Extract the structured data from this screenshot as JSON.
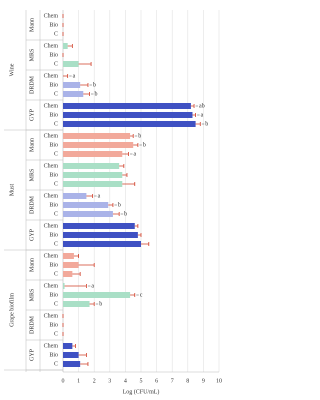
{
  "chart_data": {
    "type": "bar",
    "orientation": "horizontal",
    "xlabel": "Log (CFU/mL)",
    "xlim": [
      0,
      10
    ],
    "xticks": [
      0,
      1,
      2,
      3,
      4,
      5,
      6,
      7,
      8,
      9,
      10
    ],
    "grid": true,
    "error_color": "#d0402a",
    "groups": [
      {
        "name": "Wine",
        "media": [
          {
            "name": "Mann",
            "color": "#f2a99b",
            "categories": [
              "Chem",
              "Bio",
              "C"
            ],
            "values": [
              0,
              0,
              0
            ],
            "errors": [
              0,
              0,
              0
            ],
            "letters": [
              null,
              null,
              null
            ]
          },
          {
            "name": "MRS",
            "color": "#a9dfc6",
            "categories": [
              "Chem",
              "Bio",
              "C"
            ],
            "values": [
              0.3,
              0,
              1.0
            ],
            "errors": [
              0.3,
              0,
              0.8
            ],
            "letters": [
              null,
              null,
              null
            ]
          },
          {
            "name": "DRDM",
            "color": "#aab3e8",
            "categories": [
              "Chem",
              "Bio",
              "C"
            ],
            "values": [
              0,
              1.1,
              1.3
            ],
            "errors": [
              0.3,
              0.5,
              0.4
            ],
            "letters": [
              "a",
              "b",
              "b"
            ]
          },
          {
            "name": "GYP",
            "color": "#3f51c3",
            "categories": [
              "Chem",
              "Bio",
              "C"
            ],
            "values": [
              8.2,
              8.3,
              8.5
            ],
            "errors": [
              0.2,
              0.2,
              0.3
            ],
            "letters": [
              "ab",
              "a",
              "b"
            ]
          }
        ]
      },
      {
        "name": "Must",
        "media": [
          {
            "name": "Mann",
            "color": "#f2a99b",
            "categories": [
              "Chem",
              "Bio",
              "C"
            ],
            "values": [
              4.3,
              4.5,
              3.8
            ],
            "errors": [
              0.2,
              0.3,
              0.4
            ],
            "letters": [
              "b",
              "b",
              "a"
            ]
          },
          {
            "name": "MRS",
            "color": "#a9dfc6",
            "categories": [
              "Chem",
              "Bio",
              "C"
            ],
            "values": [
              3.6,
              3.8,
              3.8
            ],
            "errors": [
              0.3,
              0.3,
              0.8
            ],
            "letters": [
              null,
              null,
              null
            ]
          },
          {
            "name": "DRDM",
            "color": "#aab3e8",
            "categories": [
              "Chem",
              "Bio",
              "C"
            ],
            "values": [
              1.5,
              2.9,
              3.2
            ],
            "errors": [
              0.4,
              0.3,
              0.4
            ],
            "letters": [
              "a",
              "b",
              "b"
            ]
          },
          {
            "name": "GYP",
            "color": "#3f51c3",
            "categories": [
              "Chem",
              "Bio",
              "C"
            ],
            "values": [
              4.6,
              4.8,
              5.0
            ],
            "errors": [
              0.2,
              0.2,
              0.5
            ],
            "letters": [
              null,
              null,
              null
            ]
          }
        ]
      },
      {
        "name": "Grape biofilm",
        "media": [
          {
            "name": "Mann",
            "color": "#f2a99b",
            "categories": [
              "Chem",
              "Bio",
              "C"
            ],
            "values": [
              0.7,
              1.0,
              0.6
            ],
            "errors": [
              0.3,
              1.0,
              0.5
            ],
            "letters": [
              null,
              null,
              null
            ]
          },
          {
            "name": "MRS",
            "color": "#a9dfc6",
            "categories": [
              "Chem",
              "Bio",
              "C"
            ],
            "values": [
              0.1,
              4.3,
              1.7
            ],
            "errors": [
              1.4,
              0.3,
              0.3
            ],
            "letters": [
              "a",
              "c",
              "b"
            ]
          },
          {
            "name": "DRDM",
            "color": "#aab3e8",
            "categories": [
              "Chem",
              "Bio",
              "C"
            ],
            "values": [
              0,
              0,
              0
            ],
            "errors": [
              0,
              0,
              0
            ],
            "letters": [
              null,
              null,
              null
            ]
          },
          {
            "name": "GYP",
            "color": "#3f51c3",
            "categories": [
              "Chem",
              "Bio",
              "C"
            ],
            "values": [
              0.6,
              1.0,
              1.1
            ],
            "errors": [
              0.2,
              0.5,
              0.5
            ],
            "letters": [
              null,
              null,
              null
            ]
          }
        ]
      }
    ]
  }
}
